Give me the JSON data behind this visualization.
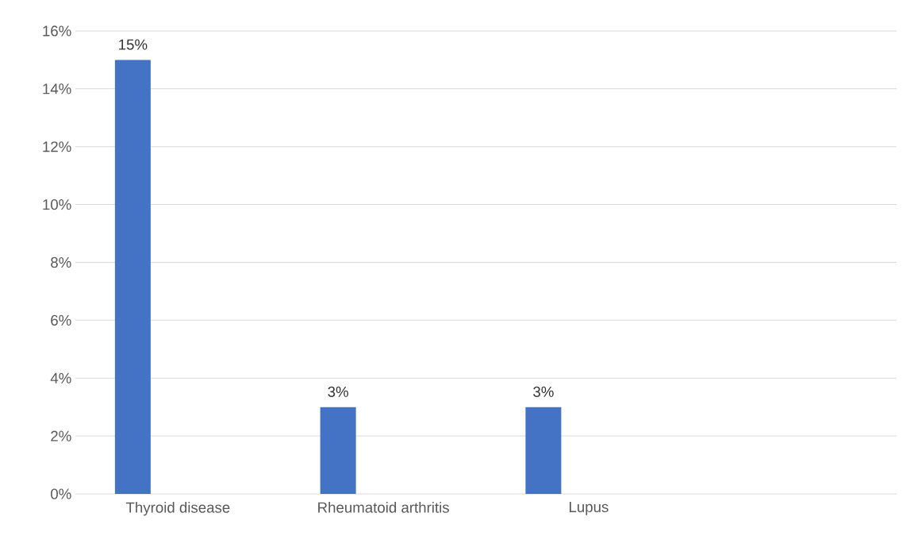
{
  "chart_data": {
    "type": "bar",
    "categories": [
      "Thyroid disease",
      "Rheumatoid arthritis",
      "Lupus",
      null
    ],
    "values": [
      15,
      3,
      3,
      null
    ],
    "value_labels": [
      "15%",
      "3%",
      "3%",
      null
    ],
    "color": "#4472c4",
    "ylim": [
      0,
      16
    ],
    "yticks": [
      {
        "value": 0,
        "label": "0%"
      },
      {
        "value": 2,
        "label": "2%"
      },
      {
        "value": 4,
        "label": "4%"
      },
      {
        "value": 6,
        "label": "6%"
      },
      {
        "value": 8,
        "label": "8%"
      },
      {
        "value": 10,
        "label": "10%"
      },
      {
        "value": 12,
        "label": "12%"
      },
      {
        "value": 14,
        "label": "14%"
      },
      {
        "value": 16,
        "label": "16%"
      }
    ],
    "grid": "y"
  }
}
